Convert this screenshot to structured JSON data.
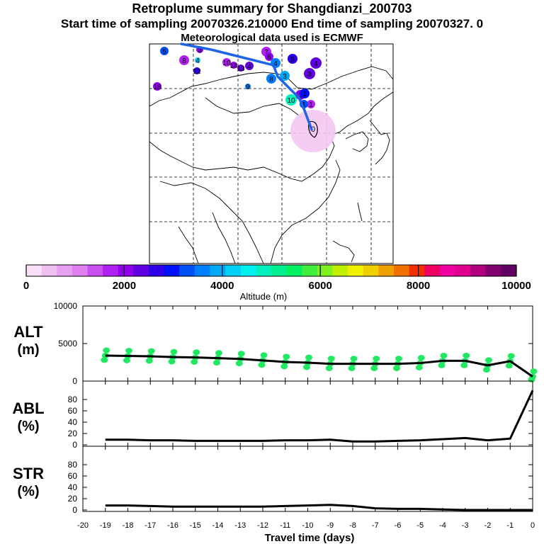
{
  "titles": {
    "main": "Retroplume summary for Shangdianzi_200703",
    "sampling": "Start time of sampling 20070326.210000     End time of sampling 20070327.     0",
    "met": "Meteorological data used is ECMWF"
  },
  "colorbar": {
    "xlabel": "Altitude (m)",
    "ticks": [
      "0",
      "2000",
      "4000",
      "6000",
      "8000",
      "10000"
    ],
    "colors": [
      "#f8e0f8",
      "#f0c0f0",
      "#e8a0f0",
      "#e080f0",
      "#c850f0",
      "#b020f0",
      "#9000e8",
      "#6000e0",
      "#3000e8",
      "#0010f8",
      "#0050f8",
      "#0080f8",
      "#00a8f8",
      "#00d0f8",
      "#00f0f0",
      "#00f0c0",
      "#00f090",
      "#00f060",
      "#40f040",
      "#80f020",
      "#c0f000",
      "#f0f000",
      "#f0d000",
      "#f0a000",
      "#f07000",
      "#f03000",
      "#f00060",
      "#f000a0",
      "#e00090",
      "#b00080",
      "#800070",
      "#600060"
    ]
  },
  "map": {
    "receptor_label": "0",
    "labels": [
      {
        "t": "5",
        "c": "#0050f8"
      },
      {
        "t": "3",
        "c": "#9000e8"
      },
      {
        "t": "8",
        "c": "#b020f0"
      },
      {
        "t": "4",
        "c": "#00d0f8"
      },
      {
        "t": "12",
        "c": "#3000e8"
      },
      {
        "t": "10",
        "c": "#b020f0"
      },
      {
        "t": "14",
        "c": "#9000e8"
      },
      {
        "t": "13",
        "c": "#6000e0"
      },
      {
        "t": "4",
        "c": "#6000e0"
      },
      {
        "t": "9",
        "c": "#0080f8"
      },
      {
        "t": "18",
        "c": "#9000e8"
      },
      {
        "t": "7",
        "c": "#b020f0"
      },
      {
        "t": "6",
        "c": "#9000e8"
      },
      {
        "t": "4",
        "c": "#0080f8"
      },
      {
        "t": "5",
        "c": "#3000e8"
      },
      {
        "t": "4",
        "c": "#6000e0"
      },
      {
        "t": "3",
        "c": "#6000e0"
      },
      {
        "t": "8",
        "c": "#0080f8"
      },
      {
        "t": "3",
        "c": "#00a8f8"
      },
      {
        "t": "2",
        "c": "#9000e8"
      },
      {
        "t": "1",
        "c": "#b020f0"
      },
      {
        "t": "1",
        "c": "#0050f8"
      },
      {
        "t": "10",
        "c": "#00f0c0"
      },
      {
        "t": "1",
        "c": "#0010f8"
      }
    ]
  },
  "chart_data": [
    {
      "type": "line",
      "title": "ALT",
      "ylabel": "(m)",
      "x": [
        -19,
        -18,
        -17,
        -16,
        -15,
        -14,
        -13,
        -12,
        -11,
        -10,
        -9,
        -8,
        -7,
        -6,
        -5,
        -4,
        -3,
        -2,
        -1,
        0
      ],
      "values": [
        3400,
        3350,
        3300,
        3200,
        3150,
        3050,
        2950,
        2750,
        2550,
        2450,
        2300,
        2300,
        2300,
        2300,
        2400,
        2700,
        2700,
        2100,
        2650,
        600
      ],
      "ylim": [
        0,
        10000
      ],
      "yticks": [
        "10000",
        "5000",
        "0"
      ],
      "scatter_color": "#20e860"
    },
    {
      "type": "line",
      "title": "ABL",
      "ylabel": "(%)",
      "x": [
        -19,
        -18,
        -17,
        -16,
        -15,
        -14,
        -13,
        -12,
        -11,
        -10,
        -9,
        -8,
        -7,
        -6,
        -5,
        -4,
        -3,
        -2,
        -1,
        0
      ],
      "values": [
        9,
        9,
        8,
        8,
        7,
        7,
        7,
        7,
        8,
        8,
        9,
        6,
        6,
        7,
        8,
        10,
        12,
        8,
        11,
        96
      ],
      "ylim": [
        0,
        100
      ],
      "yticks": [
        "80",
        "60",
        "40",
        "20",
        "0"
      ]
    },
    {
      "type": "line",
      "title": "STR",
      "ylabel": "(%)",
      "x": [
        -19,
        -18,
        -17,
        -16,
        -15,
        -14,
        -13,
        -12,
        -11,
        -10,
        -9,
        -8,
        -7,
        -6,
        -5,
        -4,
        -3,
        -2,
        -1,
        0
      ],
      "values": [
        8,
        8,
        7,
        6,
        6,
        6,
        6,
        6,
        7,
        8,
        9,
        7,
        3,
        2,
        2,
        1,
        0,
        0,
        0,
        0
      ],
      "ylim": [
        0,
        100
      ],
      "yticks": [
        "80",
        "60",
        "40",
        "20",
        "0"
      ]
    }
  ],
  "xaxis": {
    "label": "Travel time (days)",
    "ticks": [
      "-20",
      "-19",
      "-18",
      "-17",
      "-16",
      "-15",
      "-14",
      "-13",
      "-12",
      "-11",
      "-10",
      "-9",
      "-8",
      "-7",
      "-6",
      "-5",
      "-4",
      "-3",
      "-2",
      "-1",
      "0"
    ]
  }
}
